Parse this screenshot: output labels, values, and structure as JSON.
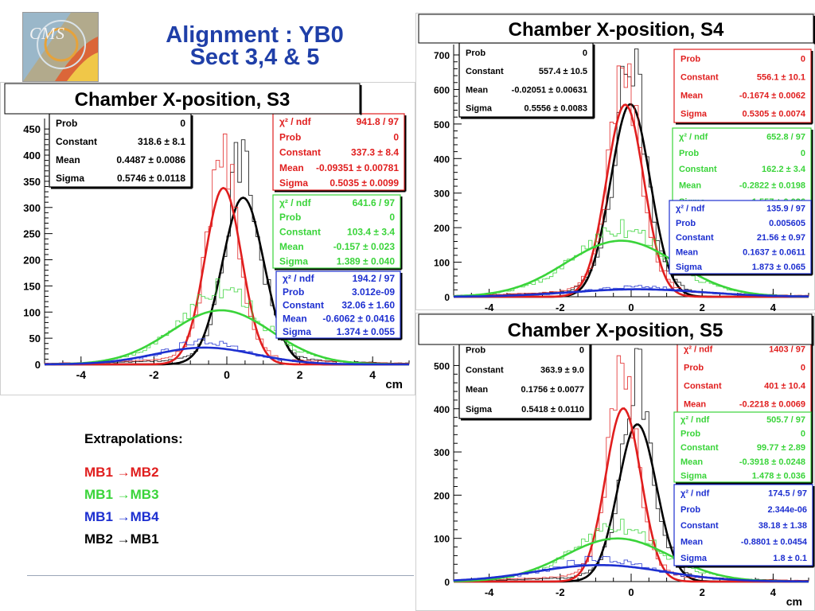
{
  "header": {
    "logo_text": "CMS",
    "title_line1": "Alignment : YB0",
    "title_line2": "Sect 3,4 & 5"
  },
  "extrapolations": {
    "heading": "Extrapolations:",
    "items": [
      {
        "from": "MB1",
        "arrow": "→",
        "to": "MB2",
        "color": "#e01e1e"
      },
      {
        "from": "MB1",
        "arrow": "→",
        "to": "MB3",
        "color": "#3ad43a"
      },
      {
        "from": "MB1",
        "arrow": "→",
        "to": "MB4",
        "color": "#1d2fd0"
      },
      {
        "from": "MB2",
        "arrow": "→",
        "to": "MB1",
        "color": "#000000"
      }
    ]
  },
  "chart_data": [
    {
      "id": "s3",
      "type": "histogram",
      "title": "Chamber X-position, S3",
      "xlabel": "cm",
      "xlim": [
        -5,
        5
      ],
      "ylim": [
        0,
        470
      ],
      "xticks": [
        -4,
        -2,
        0,
        2,
        4
      ],
      "yticks": [
        0,
        50,
        100,
        150,
        200,
        250,
        300,
        350,
        400,
        450
      ],
      "stats": [
        {
          "color": "#000000",
          "rows": [
            [
              "Prob",
              "0"
            ],
            [
              "Constant",
              "318.6 ± 8.1"
            ],
            [
              "Mean",
              "0.4487 ± 0.0086"
            ],
            [
              "Sigma",
              "0.5746 ± 0.0118"
            ]
          ]
        },
        {
          "color": "#e01e1e",
          "rows": [
            [
              "χ² / ndf",
              "941.8 / 97"
            ],
            [
              "Prob",
              "0"
            ],
            [
              "Constant",
              "337.3 ± 8.4"
            ],
            [
              "Mean",
              "-0.09351 ± 0.00781"
            ],
            [
              "Sigma",
              "0.5035 ± 0.0099"
            ]
          ]
        },
        {
          "color": "#3ad43a",
          "rows": [
            [
              "χ² / ndf",
              "641.6 / 97"
            ],
            [
              "Prob",
              "0"
            ],
            [
              "Constant",
              "103.4 ± 3.4"
            ],
            [
              "Mean",
              "-0.157 ± 0.023"
            ],
            [
              "Sigma",
              "1.389 ± 0.040"
            ]
          ]
        },
        {
          "color": "#1d2fd0",
          "rows": [
            [
              "χ² / ndf",
              "194.2 / 97"
            ],
            [
              "Prob",
              "3.012e-09"
            ],
            [
              "Constant",
              "32.06 ± 1.60"
            ],
            [
              "Mean",
              "-0.6062 ± 0.0416"
            ],
            [
              "Sigma",
              "1.374 ± 0.055"
            ]
          ]
        }
      ],
      "series": [
        {
          "color": "#000000",
          "constant": 318.6,
          "mean": 0.4487,
          "sigma": 0.5746,
          "hist_peak": 455
        },
        {
          "color": "#e01e1e",
          "constant": 337.3,
          "mean": -0.09351,
          "sigma": 0.5035,
          "hist_peak": 445
        },
        {
          "color": "#3ad43a",
          "constant": 103.4,
          "mean": -0.157,
          "sigma": 1.389,
          "hist_peak": 195
        },
        {
          "color": "#1d2fd0",
          "constant": 32.06,
          "mean": -0.6062,
          "sigma": 1.374,
          "hist_peak": 50
        }
      ]
    },
    {
      "id": "s4",
      "type": "histogram",
      "title": "Chamber X-position, S4",
      "xlabel": "cm",
      "xlim": [
        -5,
        5
      ],
      "ylim": [
        0,
        730
      ],
      "xticks": [
        -4,
        -2,
        0,
        2,
        4
      ],
      "yticks": [
        0,
        100,
        200,
        300,
        400,
        500,
        600,
        700
      ],
      "stats": [
        {
          "color": "#000000",
          "rows": [
            [
              "Prob",
              "0"
            ],
            [
              "Constant",
              "557.4 ± 10.5"
            ],
            [
              "Mean",
              "-0.02051 ± 0.00631"
            ],
            [
              "Sigma",
              "0.5556 ± 0.0083"
            ]
          ]
        },
        {
          "color": "#e01e1e",
          "rows": [
            [
              "Prob",
              "0"
            ],
            [
              "Constant",
              "556.1 ± 10.1"
            ],
            [
              "Mean",
              "-0.1674 ± 0.0062"
            ],
            [
              "Sigma",
              "0.5305 ± 0.0074"
            ]
          ]
        },
        {
          "color": "#3ad43a",
          "rows": [
            [
              "χ² / ndf",
              "652.8 / 97"
            ],
            [
              "Prob",
              "0"
            ],
            [
              "Constant",
              "162.2 ± 3.4"
            ],
            [
              "Mean",
              "-0.2822 ± 0.0198"
            ],
            [
              "Sigma",
              "1.557 ± 0.026"
            ]
          ]
        },
        {
          "color": "#1d2fd0",
          "rows": [
            [
              "χ² / ndf",
              "135.9 / 97"
            ],
            [
              "Prob",
              "0.005605"
            ],
            [
              "Constant",
              "21.56 ± 0.97"
            ],
            [
              "Mean",
              "0.1637 ± 0.0611"
            ],
            [
              "Sigma",
              "1.873 ± 0.065"
            ]
          ]
        }
      ],
      "series": [
        {
          "color": "#000000",
          "constant": 557.4,
          "mean": -0.02051,
          "sigma": 0.5556,
          "hist_peak": 700
        },
        {
          "color": "#e01e1e",
          "constant": 556.1,
          "mean": -0.1674,
          "sigma": 0.5305,
          "hist_peak": 660
        },
        {
          "color": "#3ad43a",
          "constant": 162.2,
          "mean": -0.2822,
          "sigma": 1.557,
          "hist_peak": 215
        },
        {
          "color": "#1d2fd0",
          "constant": 21.56,
          "mean": 0.1637,
          "sigma": 1.873,
          "hist_peak": 32
        }
      ]
    },
    {
      "id": "s5",
      "type": "histogram",
      "title": "Chamber X-position, S5",
      "xlabel": "cm",
      "xlim": [
        -5,
        5
      ],
      "ylim": [
        0,
        545
      ],
      "xticks": [
        -4,
        -2,
        0,
        2,
        4
      ],
      "yticks": [
        0,
        100,
        200,
        300,
        400,
        500
      ],
      "stats": [
        {
          "color": "#000000",
          "rows": [
            [
              "Prob",
              "0"
            ],
            [
              "Constant",
              "363.9 ± 9.0"
            ],
            [
              "Mean",
              "0.1756 ± 0.0077"
            ],
            [
              "Sigma",
              "0.5418 ± 0.0110"
            ]
          ]
        },
        {
          "color": "#e01e1e",
          "rows": [
            [
              "χ² / ndf",
              "1403 / 97"
            ],
            [
              "Prob",
              "0"
            ],
            [
              "Constant",
              "401 ± 10.4"
            ],
            [
              "Mean",
              "-0.2218 ± 0.0069"
            ]
          ]
        },
        {
          "color": "#3ad43a",
          "rows": [
            [
              "χ² / ndf",
              "505.7 / 97"
            ],
            [
              "Prob",
              "0"
            ],
            [
              "Constant",
              "99.77 ± 2.89"
            ],
            [
              "Mean",
              "-0.3918 ± 0.0248"
            ],
            [
              "Sigma",
              "1.478 ± 0.036"
            ]
          ]
        },
        {
          "color": "#1d2fd0",
          "rows": [
            [
              "χ² / ndf",
              "174.5 / 97"
            ],
            [
              "Prob",
              "2.344e-06"
            ],
            [
              "Constant",
              "38.18 ± 1.38"
            ],
            [
              "Mean",
              "-0.8801 ± 0.0454"
            ],
            [
              "Sigma",
              "1.8 ± 0.1"
            ]
          ]
        }
      ],
      "series": [
        {
          "color": "#000000",
          "constant": 363.9,
          "mean": 0.1756,
          "sigma": 0.5418,
          "hist_peak": 535
        },
        {
          "color": "#e01e1e",
          "constant": 401,
          "mean": -0.2218,
          "sigma": 0.5,
          "hist_peak": 530
        },
        {
          "color": "#3ad43a",
          "constant": 99.77,
          "mean": -0.3918,
          "sigma": 1.478,
          "hist_peak": 155
        },
        {
          "color": "#1d2fd0",
          "constant": 38.18,
          "mean": -0.8801,
          "sigma": 1.8,
          "hist_peak": 60
        }
      ]
    }
  ]
}
